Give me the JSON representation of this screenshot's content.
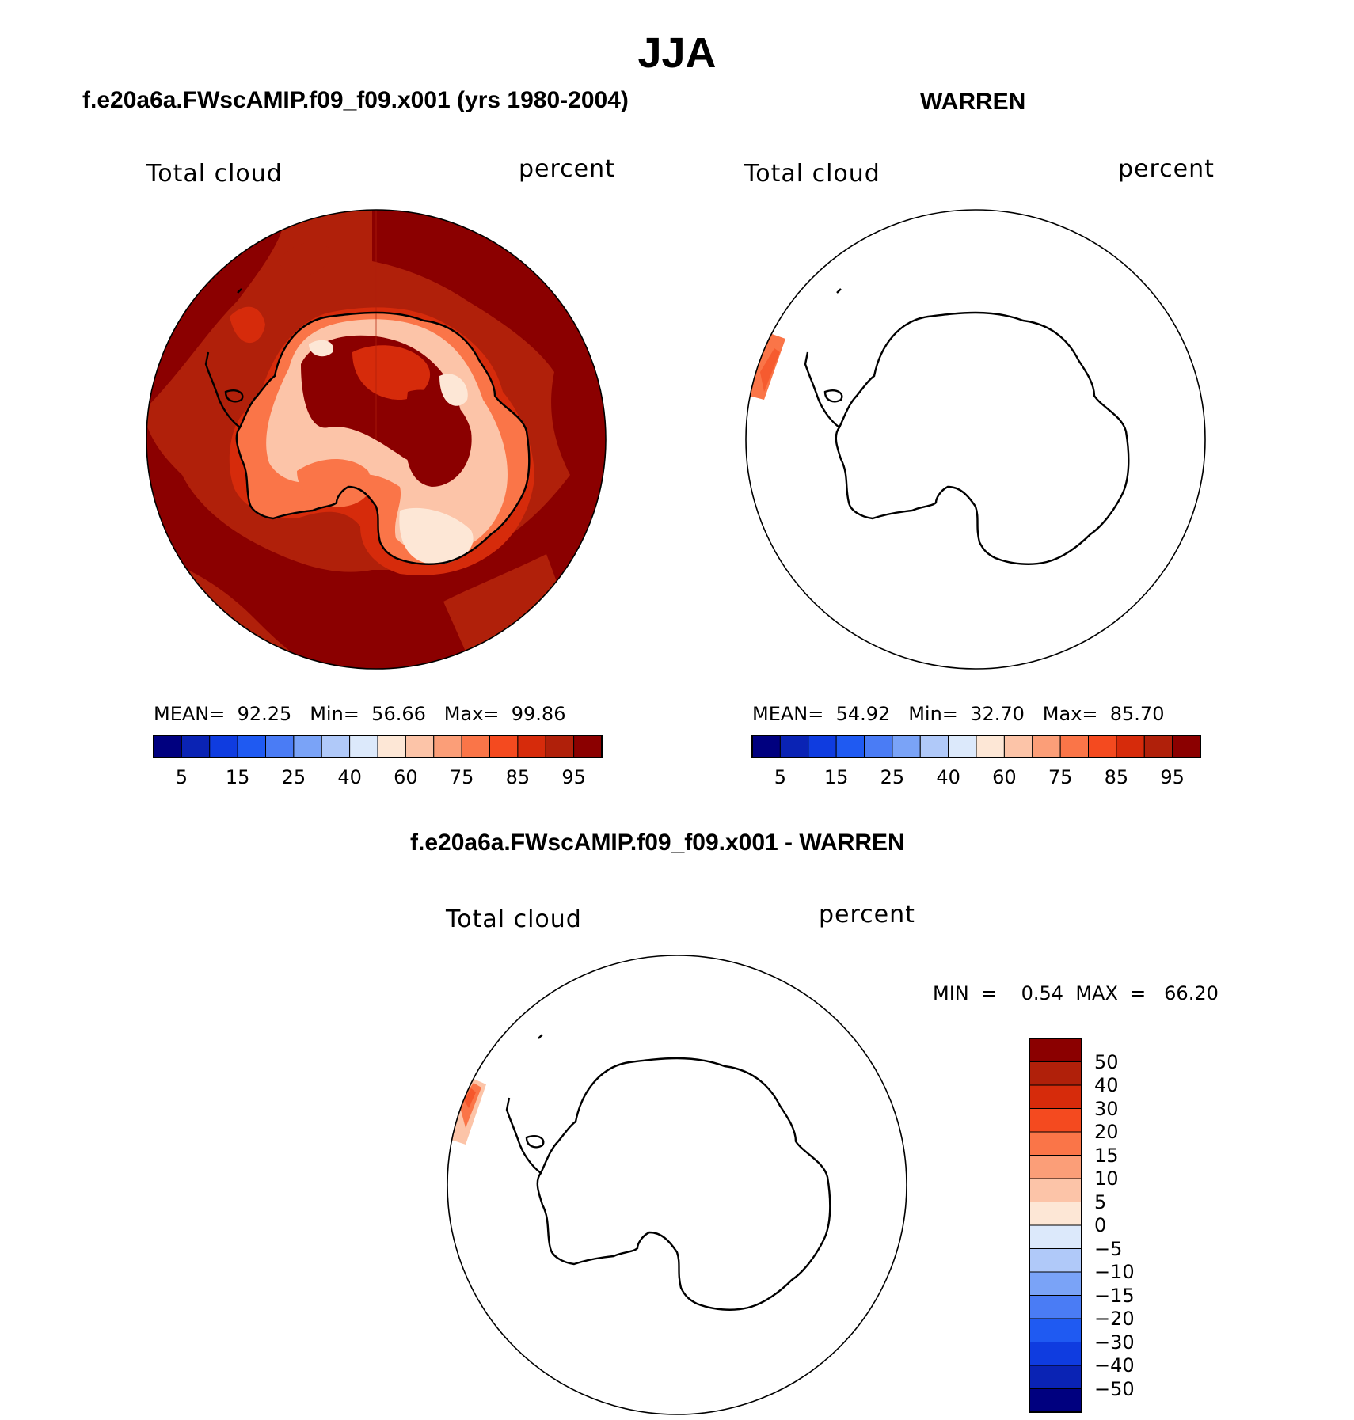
{
  "figure": {
    "title": "JJA"
  },
  "panels": [
    {
      "title": "f.e20a6a.FWscAMIP.f09_f09.x001 (yrs 1980-2004)",
      "variable": "Total cloud",
      "units": "percent",
      "stats": {
        "MEAN": "92.25",
        "Min": "56.66",
        "Max": "99.86"
      },
      "colorbar_ticks": [
        "5",
        "15",
        "25",
        "40",
        "60",
        "75",
        "85",
        "95"
      ],
      "field": "filled"
    },
    {
      "title": "WARREN",
      "variable": "Total cloud",
      "units": "percent",
      "stats": {
        "MEAN": "54.92",
        "Min": "32.70",
        "Max": "85.70"
      },
      "colorbar_ticks": [
        "5",
        "15",
        "25",
        "40",
        "60",
        "75",
        "85",
        "95"
      ],
      "field": "sparse"
    }
  ],
  "difference_panel": {
    "title": "f.e20a6a.FWscAMIP.f09_f09.x001 - WARREN",
    "variable": "Total cloud",
    "units": "percent",
    "min_label": "MIN  =",
    "min_value": "0.54",
    "max_label": "MAX  =",
    "max_value": "66.20",
    "colorbar_ticks": [
      "50",
      "40",
      "30",
      "20",
      "15",
      "10",
      "5",
      "0",
      "−5",
      "−10",
      "−15",
      "−20",
      "−30",
      "−40",
      "−50"
    ]
  },
  "colors": {
    "sequential": [
      "#00007f",
      "#0a23b4",
      "#0f3ce0",
      "#1f5af2",
      "#4a7cf5",
      "#7aa3f7",
      "#b0c9f9",
      "#dce9fb",
      "#fde7d6",
      "#fcc4a8",
      "#fb9e78",
      "#fa7548",
      "#f44a1f",
      "#d62b0b",
      "#b0200a",
      "#8b0000"
    ],
    "diverging_top_to_bottom": [
      "#8b0000",
      "#b0200a",
      "#d62b0b",
      "#f44a1f",
      "#fa7548",
      "#fb9e78",
      "#fcc4a8",
      "#fde7d6",
      "#dce9fb",
      "#b0c9f9",
      "#7aa3f7",
      "#4a7cf5",
      "#1f5af2",
      "#0f3ce0",
      "#0a23b4",
      "#00007f"
    ],
    "map_background": "#8b0000",
    "field_medium": "#b0200a",
    "field_orange": "#d62b0b",
    "field_light": "#fa7548",
    "field_lighter": "#fcc4a8",
    "field_palest": "#fde7d6"
  }
}
